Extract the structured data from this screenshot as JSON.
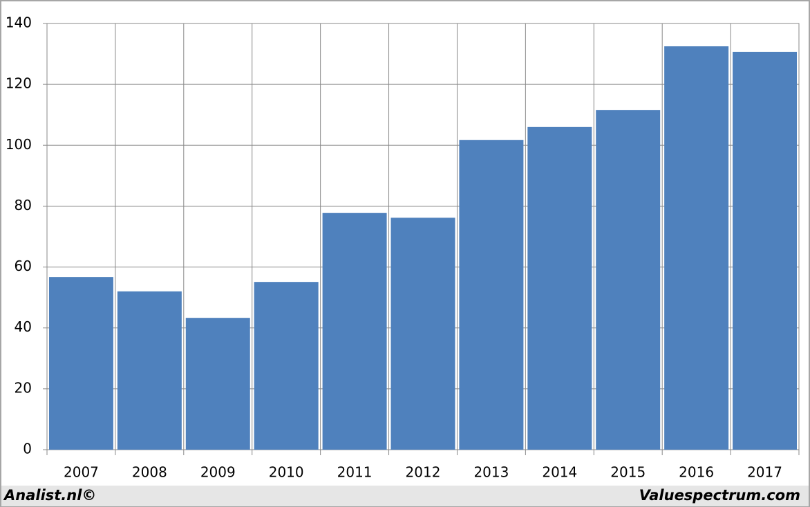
{
  "chart_data": {
    "type": "bar",
    "categories": [
      "2007",
      "2008",
      "2009",
      "2010",
      "2011",
      "2012",
      "2013",
      "2014",
      "2015",
      "2016",
      "2017"
    ],
    "values": [
      56.7,
      52.0,
      43.3,
      55.1,
      77.8,
      76.2,
      101.7,
      106.0,
      111.6,
      132.5,
      130.7
    ],
    "color": "#4f81bd",
    "ylim": [
      0,
      140
    ],
    "yticks": [
      0,
      20,
      40,
      60,
      80,
      100,
      120,
      140
    ],
    "grid": true,
    "source": "Analist.nl©",
    "credit": "Valuespectrum.com"
  }
}
